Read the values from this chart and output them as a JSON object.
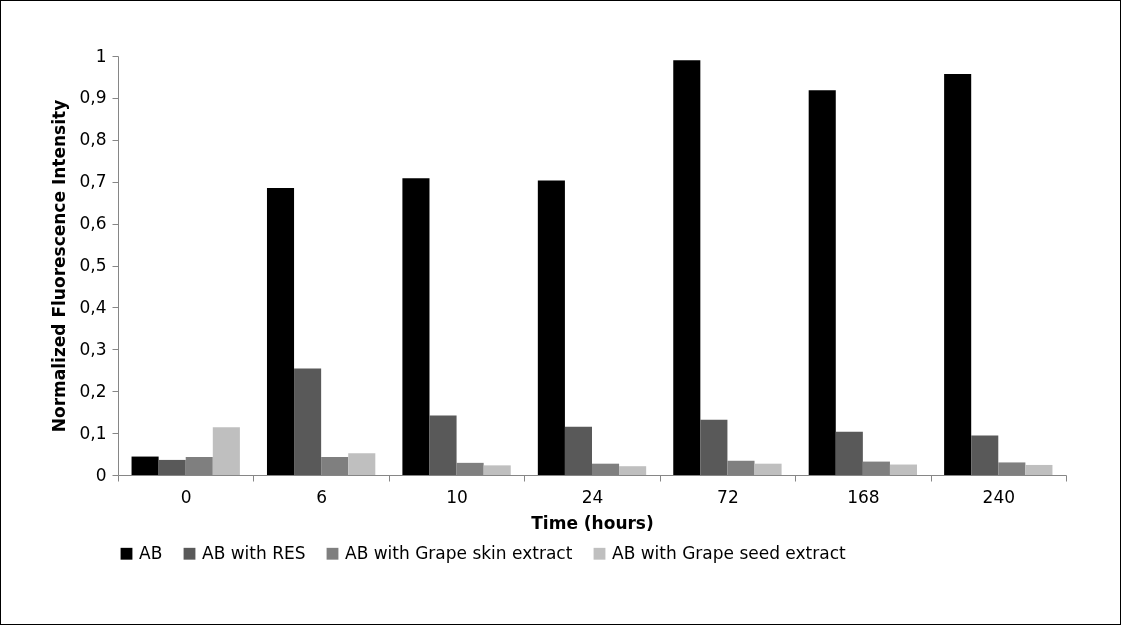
{
  "chart_data": {
    "type": "bar",
    "xlabel": "Time (hours)",
    "ylabel": "Normalized Fluorescence Intensity",
    "categories": [
      "0",
      "6",
      "10",
      "24",
      "72",
      "168",
      "240"
    ],
    "series": [
      {
        "name": "AB",
        "color": "#000000",
        "values": [
          0.044,
          0.685,
          0.708,
          0.703,
          0.99,
          0.918,
          0.957
        ]
      },
      {
        "name": "AB with RES",
        "color": "#595959",
        "values": [
          0.036,
          0.254,
          0.142,
          0.115,
          0.132,
          0.103,
          0.094
        ]
      },
      {
        "name": "AB with Grape skin extract",
        "color": "#7f7f7f",
        "values": [
          0.043,
          0.043,
          0.029,
          0.027,
          0.034,
          0.032,
          0.03
        ]
      },
      {
        "name": "AB with Grape seed extract",
        "color": "#bfbfbf",
        "values": [
          0.114,
          0.052,
          0.023,
          0.021,
          0.027,
          0.025,
          0.024
        ]
      }
    ],
    "ylim": [
      0,
      1
    ],
    "yticks": [
      0,
      {
        "value": 0.1,
        "label": "0,1"
      },
      {
        "value": 0.2,
        "label": "0,2"
      },
      {
        "value": 0.3,
        "label": "0,3"
      },
      {
        "value": 0.4,
        "label": "0,4"
      },
      {
        "value": 0.5,
        "label": "0,5"
      },
      {
        "value": 0.6,
        "label": "0,6"
      },
      {
        "value": 0.7,
        "label": "0,7"
      },
      {
        "value": 0.8,
        "label": "0,8"
      },
      {
        "value": 0.9,
        "label": "0,9"
      },
      1
    ],
    "grid": false,
    "legend": "bottom"
  }
}
